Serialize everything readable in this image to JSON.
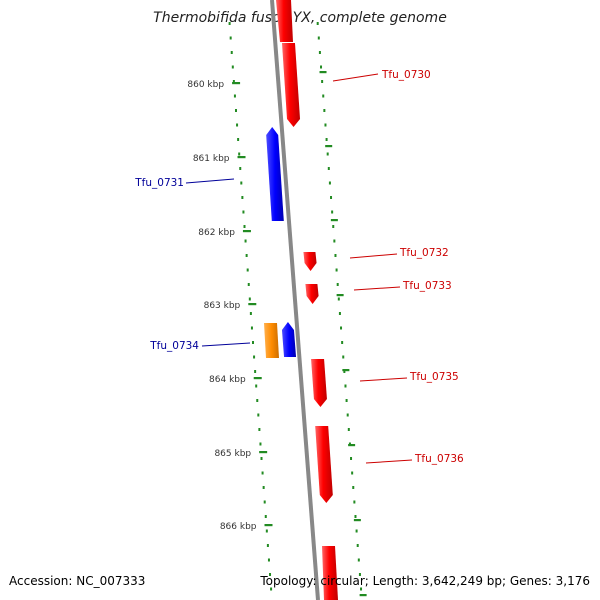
{
  "title": "Thermobifida fusca YX, complete genome",
  "accession_label": "Accession: NC_007333",
  "summary_label": "Topology: circular; Length: 3,642,249 bp; Genes: 3,176",
  "ticks": [
    {
      "label": "860 kbp"
    },
    {
      "label": "861 kbp"
    },
    {
      "label": "862 kbp"
    },
    {
      "label": "863 kbp"
    },
    {
      "label": "864 kbp"
    },
    {
      "label": "865 kbp"
    },
    {
      "label": "866 kbp"
    }
  ],
  "genes": [
    {
      "name": "Tfu_0730",
      "strand": "forward",
      "color": "#ff0000"
    },
    {
      "name": "Tfu_0731",
      "strand": "reverse",
      "color": "#0000ff"
    },
    {
      "name": "Tfu_0732",
      "strand": "forward",
      "color": "#ff0000"
    },
    {
      "name": "Tfu_0733",
      "strand": "forward",
      "color": "#ff0000"
    },
    {
      "name": "Tfu_0734",
      "strand": "reverse",
      "color": "#0000ff"
    },
    {
      "name": "Tfu_0735",
      "strand": "forward",
      "color": "#ff0000"
    },
    {
      "name": "Tfu_0736",
      "strand": "forward",
      "color": "#ff0000"
    }
  ],
  "colors": {
    "backbone": "#888888",
    "tick_marks": "#228B22",
    "forward_label": "#cc0000",
    "reverse_label": "#000099",
    "highlight": "#ff8c00"
  }
}
